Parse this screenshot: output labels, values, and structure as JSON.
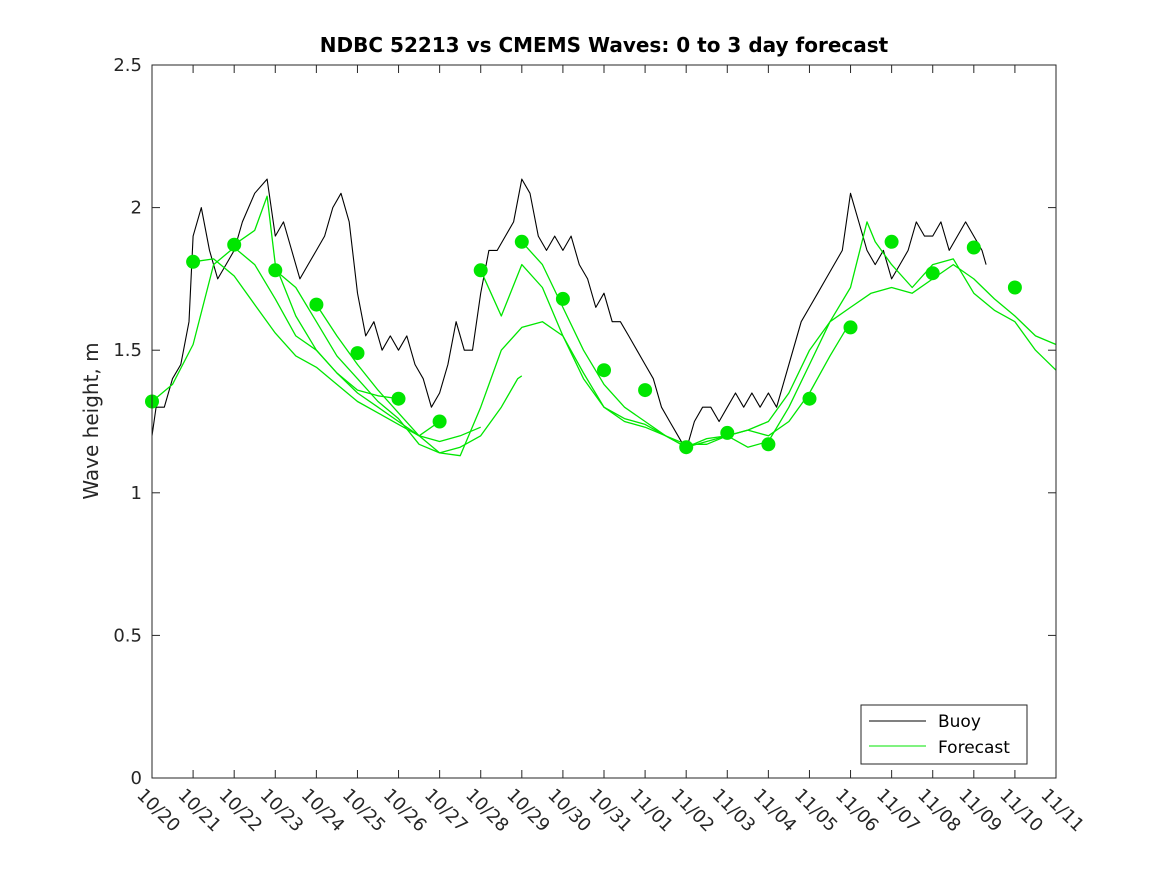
{
  "chart_data": {
    "type": "line",
    "title": "NDBC 52213 vs CMEMS Waves: 0 to 3 day forecast",
    "xlabel": "",
    "ylabel": "Wave height, m",
    "ylim": [
      0,
      2.5
    ],
    "yticks": [
      0,
      0.5,
      1,
      1.5,
      2,
      2.5
    ],
    "ytick_labels": [
      "0",
      "0.5",
      "1",
      "1.5",
      "2",
      "2.5"
    ],
    "xlim": [
      0,
      22
    ],
    "x_tick_labels": [
      "10/20",
      "10/21",
      "10/22",
      "10/23",
      "10/24",
      "10/25",
      "10/26",
      "10/27",
      "10/28",
      "10/29",
      "10/30",
      "10/31",
      "11/01",
      "11/02",
      "11/03",
      "11/04",
      "11/05",
      "11/06",
      "11/07",
      "11/08",
      "11/09",
      "11/10",
      "11/11"
    ],
    "grid": false,
    "legend": {
      "position": "bottom-right",
      "entries": [
        {
          "label": "Buoy",
          "color": "#000000"
        },
        {
          "label": "Forecast",
          "color": "#00e600"
        }
      ]
    },
    "series": [
      {
        "name": "Buoy",
        "color": "#000000",
        "points": [
          [
            0,
            1.2
          ],
          [
            0.1,
            1.3
          ],
          [
            0.3,
            1.3
          ],
          [
            0.5,
            1.4
          ],
          [
            0.7,
            1.45
          ],
          [
            0.9,
            1.6
          ],
          [
            1.0,
            1.9
          ],
          [
            1.2,
            2.0
          ],
          [
            1.4,
            1.85
          ],
          [
            1.6,
            1.75
          ],
          [
            1.8,
            1.8
          ],
          [
            2.0,
            1.85
          ],
          [
            2.2,
            1.95
          ],
          [
            2.5,
            2.05
          ],
          [
            2.8,
            2.1
          ],
          [
            3.0,
            1.9
          ],
          [
            3.2,
            1.95
          ],
          [
            3.4,
            1.85
          ],
          [
            3.6,
            1.75
          ],
          [
            3.8,
            1.8
          ],
          [
            4.0,
            1.85
          ],
          [
            4.2,
            1.9
          ],
          [
            4.4,
            2.0
          ],
          [
            4.6,
            2.05
          ],
          [
            4.8,
            1.95
          ],
          [
            5.0,
            1.7
          ],
          [
            5.2,
            1.55
          ],
          [
            5.4,
            1.6
          ],
          [
            5.6,
            1.5
          ],
          [
            5.8,
            1.55
          ],
          [
            6.0,
            1.5
          ],
          [
            6.2,
            1.55
          ],
          [
            6.4,
            1.45
          ],
          [
            6.6,
            1.4
          ],
          [
            6.8,
            1.3
          ],
          [
            7.0,
            1.35
          ],
          [
            7.2,
            1.45
          ],
          [
            7.4,
            1.6
          ],
          [
            7.6,
            1.5
          ],
          [
            7.8,
            1.5
          ],
          [
            8.0,
            1.7
          ],
          [
            8.2,
            1.85
          ],
          [
            8.4,
            1.85
          ],
          [
            8.6,
            1.9
          ],
          [
            8.8,
            1.95
          ],
          [
            9.0,
            2.1
          ],
          [
            9.2,
            2.05
          ],
          [
            9.4,
            1.9
          ],
          [
            9.6,
            1.85
          ],
          [
            9.8,
            1.9
          ],
          [
            10.0,
            1.85
          ],
          [
            10.2,
            1.9
          ],
          [
            10.4,
            1.8
          ],
          [
            10.6,
            1.75
          ],
          [
            10.8,
            1.65
          ],
          [
            11.0,
            1.7
          ],
          [
            11.2,
            1.6
          ],
          [
            11.4,
            1.6
          ],
          [
            11.6,
            1.55
          ],
          [
            11.8,
            1.5
          ],
          [
            12.0,
            1.45
          ],
          [
            12.2,
            1.4
          ],
          [
            12.4,
            1.3
          ],
          [
            12.6,
            1.25
          ],
          [
            12.8,
            1.2
          ],
          [
            13.0,
            1.15
          ],
          [
            13.2,
            1.25
          ],
          [
            13.4,
            1.3
          ],
          [
            13.6,
            1.3
          ],
          [
            13.8,
            1.25
          ],
          [
            14.0,
            1.3
          ],
          [
            14.2,
            1.35
          ],
          [
            14.4,
            1.3
          ],
          [
            14.6,
            1.35
          ],
          [
            14.8,
            1.3
          ],
          [
            15.0,
            1.35
          ],
          [
            15.2,
            1.3
          ],
          [
            15.4,
            1.4
          ],
          [
            15.6,
            1.5
          ],
          [
            15.8,
            1.6
          ],
          [
            16.0,
            1.65
          ],
          [
            16.2,
            1.7
          ],
          [
            16.4,
            1.75
          ],
          [
            16.6,
            1.8
          ],
          [
            16.8,
            1.85
          ],
          [
            17.0,
            2.05
          ],
          [
            17.2,
            1.95
          ],
          [
            17.4,
            1.85
          ],
          [
            17.6,
            1.8
          ],
          [
            17.8,
            1.85
          ],
          [
            18.0,
            1.75
          ],
          [
            18.2,
            1.8
          ],
          [
            18.4,
            1.85
          ],
          [
            18.6,
            1.95
          ],
          [
            18.8,
            1.9
          ],
          [
            19.0,
            1.9
          ],
          [
            19.2,
            1.95
          ],
          [
            19.4,
            1.85
          ],
          [
            19.6,
            1.9
          ],
          [
            19.8,
            1.95
          ],
          [
            20.0,
            1.9
          ],
          [
            20.2,
            1.85
          ],
          [
            20.3,
            1.8
          ]
        ]
      },
      {
        "name": "Forecast run 1",
        "color": "#00e600",
        "points": [
          [
            0,
            1.32
          ],
          [
            0.5,
            1.38
          ],
          [
            1.0,
            1.52
          ],
          [
            1.5,
            1.8
          ],
          [
            2.0,
            1.86
          ],
          [
            2.5,
            1.8
          ],
          [
            3.0,
            1.68
          ],
          [
            3.5,
            1.55
          ],
          [
            4.0,
            1.5
          ],
          [
            4.5,
            1.42
          ],
          [
            5.0,
            1.36
          ],
          [
            5.5,
            1.34
          ],
          [
            6.0,
            1.33
          ]
        ]
      },
      {
        "name": "Forecast run 2",
        "color": "#00e600",
        "points": [
          [
            1,
            1.81
          ],
          [
            1.5,
            1.82
          ],
          [
            2.0,
            1.76
          ],
          [
            2.5,
            1.66
          ],
          [
            3.0,
            1.56
          ],
          [
            3.5,
            1.48
          ],
          [
            4.0,
            1.44
          ],
          [
            4.5,
            1.38
          ],
          [
            5.0,
            1.32
          ],
          [
            5.5,
            1.28
          ],
          [
            6.0,
            1.24
          ],
          [
            6.5,
            1.2
          ],
          [
            7.0,
            1.25
          ]
        ]
      },
      {
        "name": "Forecast run 3",
        "color": "#00e600",
        "points": [
          [
            2,
            1.87
          ],
          [
            2.5,
            1.92
          ],
          [
            2.8,
            2.04
          ],
          [
            3.0,
            1.8
          ],
          [
            3.5,
            1.62
          ],
          [
            4.0,
            1.5
          ],
          [
            4.5,
            1.42
          ],
          [
            5.0,
            1.35
          ],
          [
            5.5,
            1.3
          ],
          [
            6.0,
            1.25
          ],
          [
            6.5,
            1.2
          ],
          [
            7.0,
            1.18
          ],
          [
            7.5,
            1.2
          ],
          [
            8.0,
            1.23
          ]
        ]
      },
      {
        "name": "Forecast run 4",
        "color": "#00e600",
        "points": [
          [
            3,
            1.78
          ],
          [
            3.5,
            1.72
          ],
          [
            4.0,
            1.6
          ],
          [
            4.5,
            1.48
          ],
          [
            5.0,
            1.4
          ],
          [
            5.5,
            1.32
          ],
          [
            6.0,
            1.26
          ],
          [
            6.5,
            1.17
          ],
          [
            7.0,
            1.14
          ],
          [
            7.5,
            1.16
          ],
          [
            8.0,
            1.2
          ],
          [
            8.5,
            1.3
          ],
          [
            8.9,
            1.4
          ],
          [
            9.0,
            1.41
          ]
        ]
      },
      {
        "name": "Forecast run 5",
        "color": "#00e600",
        "points": [
          [
            4,
            1.66
          ],
          [
            4.5,
            1.55
          ],
          [
            5.0,
            1.45
          ],
          [
            5.5,
            1.36
          ],
          [
            6.0,
            1.28
          ],
          [
            6.5,
            1.2
          ],
          [
            7.0,
            1.14
          ],
          [
            7.5,
            1.13
          ],
          [
            8.0,
            1.3
          ],
          [
            8.5,
            1.5
          ],
          [
            9.0,
            1.58
          ],
          [
            9.5,
            1.6
          ],
          [
            10.0,
            1.55
          ],
          [
            10.5,
            1.42
          ],
          [
            11.0,
            1.3
          ],
          [
            11.5,
            1.25
          ],
          [
            12.0,
            1.23
          ],
          [
            12.5,
            1.2
          ],
          [
            13.0,
            1.16
          ]
        ]
      },
      {
        "name": "Forecast run 6",
        "color": "#00e600",
        "points": [
          [
            8,
            1.78
          ],
          [
            8.5,
            1.62
          ],
          [
            9.0,
            1.8
          ],
          [
            9.5,
            1.72
          ],
          [
            10.0,
            1.55
          ],
          [
            10.5,
            1.4
          ],
          [
            11.0,
            1.3
          ],
          [
            11.5,
            1.26
          ],
          [
            12.0,
            1.24
          ],
          [
            12.5,
            1.2
          ],
          [
            13.0,
            1.16
          ],
          [
            13.5,
            1.18
          ],
          [
            14.0,
            1.2
          ],
          [
            14.5,
            1.22
          ],
          [
            15.0,
            1.2
          ],
          [
            15.5,
            1.25
          ],
          [
            16.0,
            1.35
          ],
          [
            16.5,
            1.48
          ],
          [
            17.0,
            1.6
          ]
        ]
      },
      {
        "name": "Forecast run 7",
        "color": "#00e600",
        "points": [
          [
            9,
            1.88
          ],
          [
            9.5,
            1.8
          ],
          [
            10.0,
            1.65
          ],
          [
            10.5,
            1.5
          ],
          [
            11.0,
            1.38
          ],
          [
            11.5,
            1.3
          ],
          [
            12.0,
            1.25
          ],
          [
            12.5,
            1.2
          ],
          [
            13.0,
            1.17
          ],
          [
            13.5,
            1.17
          ],
          [
            14.0,
            1.2
          ],
          [
            14.5,
            1.22
          ],
          [
            15.0,
            1.25
          ],
          [
            15.5,
            1.35
          ],
          [
            16.0,
            1.5
          ],
          [
            16.5,
            1.6
          ],
          [
            17.0,
            1.65
          ],
          [
            17.5,
            1.7
          ],
          [
            18.0,
            1.72
          ],
          [
            18.5,
            1.7
          ],
          [
            19.0,
            1.75
          ],
          [
            19.5,
            1.8
          ],
          [
            20.0,
            1.75
          ],
          [
            20.5,
            1.68
          ],
          [
            21.0,
            1.62
          ],
          [
            21.5,
            1.55
          ],
          [
            22.0,
            1.52
          ]
        ]
      },
      {
        "name": "Forecast run 8",
        "color": "#00e600",
        "points": [
          [
            13,
            1.16
          ],
          [
            13.5,
            1.19
          ],
          [
            14.0,
            1.2
          ],
          [
            14.5,
            1.16
          ],
          [
            15.0,
            1.18
          ],
          [
            15.5,
            1.3
          ],
          [
            16.0,
            1.45
          ],
          [
            16.5,
            1.6
          ],
          [
            17.0,
            1.72
          ],
          [
            17.4,
            1.95
          ],
          [
            17.6,
            1.88
          ],
          [
            18.0,
            1.8
          ],
          [
            18.5,
            1.72
          ],
          [
            19.0,
            1.8
          ],
          [
            19.5,
            1.82
          ],
          [
            20.0,
            1.7
          ],
          [
            20.5,
            1.64
          ],
          [
            21.0,
            1.6
          ],
          [
            21.5,
            1.5
          ],
          [
            22.0,
            1.43
          ]
        ]
      }
    ],
    "markers": {
      "name": "Forecast initial values",
      "color": "#00e600",
      "points": [
        [
          0,
          1.32
        ],
        [
          1,
          1.81
        ],
        [
          2,
          1.87
        ],
        [
          3,
          1.78
        ],
        [
          4,
          1.66
        ],
        [
          5,
          1.49
        ],
        [
          6,
          1.33
        ],
        [
          7,
          1.25
        ],
        [
          8,
          1.78
        ],
        [
          9,
          1.88
        ],
        [
          10,
          1.68
        ],
        [
          11,
          1.43
        ],
        [
          12,
          1.36
        ],
        [
          13,
          1.16
        ],
        [
          14,
          1.21
        ],
        [
          15,
          1.17
        ],
        [
          16,
          1.33
        ],
        [
          17,
          1.58
        ],
        [
          18,
          1.88
        ],
        [
          19,
          1.77
        ],
        [
          20,
          1.86
        ],
        [
          21,
          1.72
        ]
      ]
    }
  }
}
